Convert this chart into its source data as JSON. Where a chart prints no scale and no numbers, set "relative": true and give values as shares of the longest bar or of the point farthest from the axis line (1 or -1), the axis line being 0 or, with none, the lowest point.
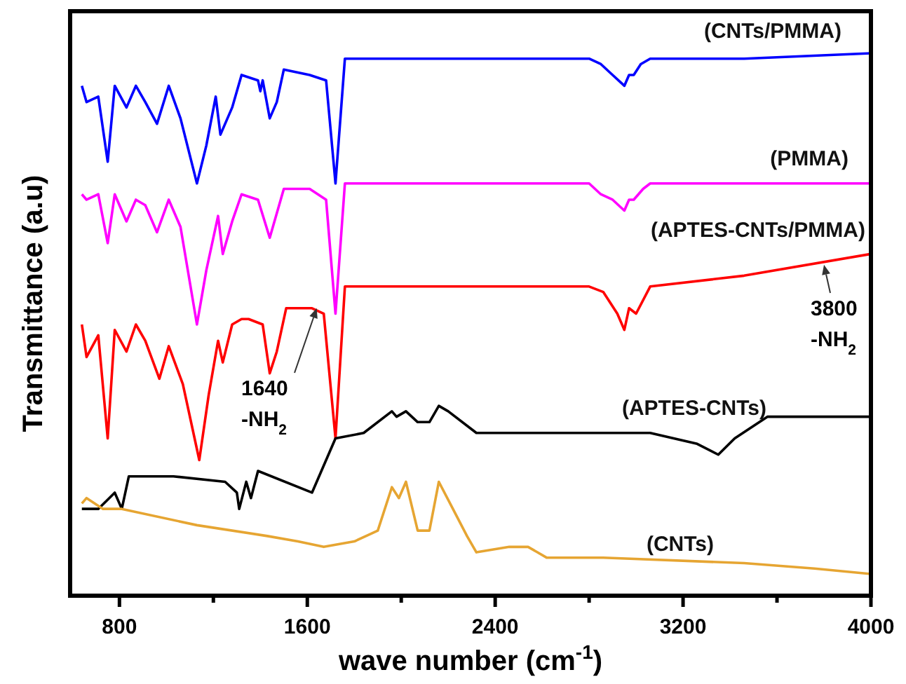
{
  "chart_data": {
    "type": "line",
    "relative": true,
    "xlabel": "wave number (cm$^{-1}$)",
    "ylabel": "Transmittance (a.u)",
    "xlim": [
      590,
      4000
    ],
    "xticks": [
      800,
      {
        "value": 1200,
        "label": null
      },
      1600,
      {
        "value": 2000,
        "label": null
      },
      2400,
      {
        "value": 2800,
        "label": null
      },
      3200,
      {
        "value": 3600,
        "label": null
      },
      4000
    ],
    "grid": false,
    "marker": "none",
    "line_style": "solid",
    "tick_labels": "x",
    "annotations": [
      {
        "text": "1640\n-NH$_{2}$",
        "x": 1640,
        "y": 0.53
      },
      {
        "text": "3800\n-NH$_{2}$",
        "x": 3800,
        "y": 0.61
      }
    ],
    "series": [
      {
        "name": "(CNTs/PMMA)",
        "color": "#0000ff",
        "x": [
          640,
          660,
          710,
          750,
          780,
          830,
          870,
          910,
          960,
          1010,
          1060,
          1130,
          1170,
          1210,
          1230,
          1280,
          1320,
          1390,
          1400,
          1410,
          1440,
          1470,
          1500,
          1610,
          1680,
          1720,
          1760,
          1920,
          2020,
          2320,
          2800,
          2850,
          2900,
          2950,
          2970,
          2990,
          3020,
          3060,
          3460,
          4000
        ],
        "values": [
          0.94,
          0.91,
          0.92,
          0.8,
          0.94,
          0.9,
          0.94,
          0.91,
          0.87,
          0.94,
          0.88,
          0.76,
          0.83,
          0.92,
          0.85,
          0.9,
          0.96,
          0.95,
          0.93,
          0.95,
          0.88,
          0.91,
          0.97,
          0.96,
          0.95,
          0.76,
          0.99,
          0.99,
          0.99,
          0.99,
          0.99,
          0.98,
          0.96,
          0.94,
          0.96,
          0.96,
          0.98,
          0.99,
          0.99,
          1.0
        ]
      },
      {
        "name": "(PMMA)",
        "color": "#ff00ff",
        "x": [
          640,
          660,
          710,
          750,
          780,
          830,
          870,
          910,
          960,
          1010,
          1060,
          1130,
          1170,
          1220,
          1240,
          1280,
          1320,
          1390,
          1440,
          1500,
          1610,
          1680,
          1720,
          1760,
          1960,
          2320,
          2800,
          2850,
          2900,
          2950,
          2970,
          2990,
          3030,
          3060,
          4000
        ],
        "values": [
          0.74,
          0.73,
          0.74,
          0.65,
          0.74,
          0.69,
          0.73,
          0.72,
          0.67,
          0.73,
          0.68,
          0.5,
          0.6,
          0.7,
          0.63,
          0.69,
          0.74,
          0.73,
          0.66,
          0.75,
          0.75,
          0.73,
          0.52,
          0.76,
          0.76,
          0.76,
          0.76,
          0.74,
          0.73,
          0.71,
          0.73,
          0.73,
          0.75,
          0.76,
          0.76
        ]
      },
      {
        "name": "(APTES-CNTs/PMMA)",
        "color": "#ff0000",
        "x": [
          640,
          660,
          710,
          750,
          780,
          830,
          870,
          910,
          970,
          1010,
          1070,
          1140,
          1180,
          1220,
          1240,
          1280,
          1320,
          1350,
          1410,
          1440,
          1470,
          1510,
          1620,
          1670,
          1720,
          1760,
          1920,
          2320,
          2800,
          2860,
          2920,
          2950,
          2970,
          3000,
          3060,
          3460,
          4000
        ],
        "values": [
          0.5,
          0.44,
          0.48,
          0.29,
          0.49,
          0.45,
          0.5,
          0.47,
          0.4,
          0.46,
          0.39,
          0.25,
          0.37,
          0.47,
          0.43,
          0.5,
          0.51,
          0.51,
          0.5,
          0.41,
          0.45,
          0.53,
          0.53,
          0.52,
          0.29,
          0.57,
          0.57,
          0.57,
          0.57,
          0.56,
          0.52,
          0.49,
          0.53,
          0.52,
          0.57,
          0.59,
          0.63
        ]
      },
      {
        "name": "(APTES-CNTs)",
        "color": "#000000",
        "x": [
          640,
          710,
          780,
          810,
          840,
          1030,
          1250,
          1300,
          1310,
          1340,
          1360,
          1390,
          1620,
          1720,
          1840,
          1960,
          1980,
          2020,
          2070,
          2120,
          2160,
          2200,
          2320,
          2340,
          2660,
          3060,
          3260,
          3350,
          3420,
          3560,
          4000
        ],
        "values": [
          0.16,
          0.16,
          0.19,
          0.16,
          0.22,
          0.22,
          0.21,
          0.19,
          0.16,
          0.21,
          0.18,
          0.23,
          0.19,
          0.29,
          0.3,
          0.34,
          0.33,
          0.34,
          0.32,
          0.32,
          0.35,
          0.34,
          0.3,
          0.3,
          0.3,
          0.3,
          0.28,
          0.26,
          0.29,
          0.33,
          0.33
        ]
      },
      {
        "name": "(CNTs)",
        "color": "#e6a532",
        "x": [
          640,
          660,
          730,
          810,
          1130,
          1430,
          1560,
          1670,
          1800,
          1900,
          1960,
          1990,
          2020,
          2070,
          2120,
          2160,
          2220,
          2280,
          2320,
          2460,
          2540,
          2620,
          2860,
          3460,
          3760,
          4000
        ],
        "values": [
          0.17,
          0.18,
          0.16,
          0.16,
          0.13,
          0.11,
          0.1,
          0.09,
          0.1,
          0.12,
          0.2,
          0.18,
          0.21,
          0.12,
          0.12,
          0.21,
          0.16,
          0.11,
          0.08,
          0.09,
          0.09,
          0.07,
          0.07,
          0.06,
          0.05,
          0.04
        ]
      }
    ]
  }
}
